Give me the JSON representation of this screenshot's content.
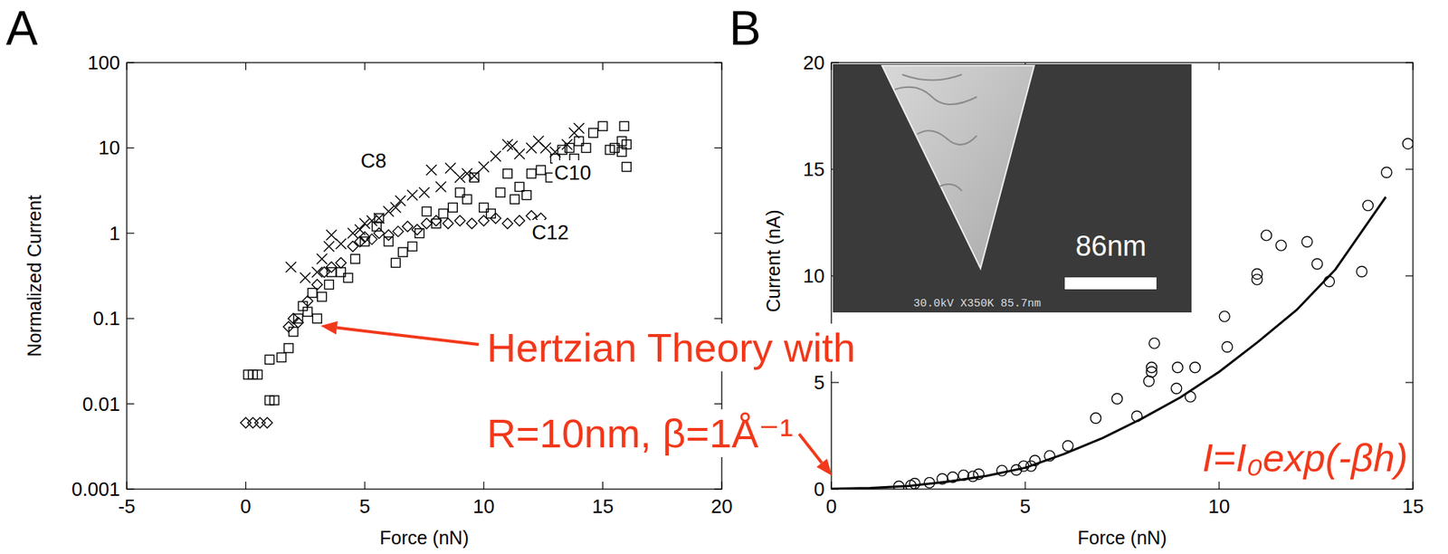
{
  "chart_data": [
    {
      "type": "scatter",
      "title": "A",
      "x_label": "Force (nN)",
      "y_label": "Normalized Current",
      "log": "y",
      "xlim": [
        -5,
        20
      ],
      "xticks": [
        -5,
        0,
        5,
        10,
        15,
        20
      ],
      "ylim": [
        0.001,
        100
      ],
      "yticks": [
        0.001,
        0.01,
        0.1,
        1,
        10,
        100
      ],
      "series": [
        {
          "name": "C8",
          "marker": "x",
          "x": [
            1.9,
            2.5,
            3.0,
            3.2,
            3.5,
            3.6,
            4.0,
            4.5,
            4.8,
            5.0,
            5.3,
            5.6,
            6.0,
            6.3,
            6.5,
            7.0,
            7.5,
            7.8,
            8.2,
            8.6,
            9.0,
            9.3,
            9.6,
            10.0,
            10.5,
            11.0,
            11.2,
            11.5,
            12.0,
            12.3,
            12.6,
            13.0,
            13.5,
            13.8,
            14.0
          ],
          "values": [
            0.4,
            0.3,
            0.35,
            0.5,
            0.7,
            0.95,
            0.75,
            1.0,
            1.1,
            1.3,
            1.4,
            1.5,
            1.8,
            2.0,
            2.4,
            2.8,
            3.0,
            5.5,
            3.5,
            5.8,
            4.5,
            5.0,
            4.7,
            6.0,
            8.0,
            11.0,
            10.5,
            8.5,
            10.0,
            12.0,
            10.0,
            9.0,
            11.0,
            15.0,
            17.0
          ]
        },
        {
          "name": "C10",
          "marker": "square",
          "x": [
            0.1,
            0.3,
            0.5,
            1.0,
            1.2,
            1.0,
            1.5,
            1.8,
            2.0,
            2.2,
            2.4,
            2.6,
            2.8,
            3.0,
            3.2,
            3.5,
            3.6,
            4.0,
            4.3,
            4.6,
            5.0,
            5.5,
            5.6,
            6.0,
            6.3,
            6.6,
            7.0,
            7.3,
            7.6,
            8.0,
            8.3,
            8.7,
            9.0,
            9.3,
            9.6,
            10.0,
            10.3,
            10.7,
            11.0,
            11.3,
            11.5,
            11.8,
            12.0,
            12.4,
            12.8,
            13.0,
            13.3,
            13.6,
            13.8,
            14.0,
            14.3,
            14.6,
            15.0,
            15.3,
            15.5,
            15.8,
            15.9,
            16.0,
            15.8,
            16.0
          ],
          "values": [
            0.022,
            0.022,
            0.022,
            0.011,
            0.011,
            0.033,
            0.035,
            0.045,
            0.07,
            0.1,
            0.14,
            0.12,
            0.2,
            0.1,
            0.18,
            0.25,
            0.35,
            0.35,
            0.3,
            0.5,
            0.8,
            1.2,
            1.5,
            0.8,
            0.45,
            0.6,
            0.7,
            1.0,
            1.8,
            1.3,
            1.7,
            2.0,
            3.0,
            2.5,
            4.5,
            2.0,
            1.7,
            3.0,
            5.0,
            2.5,
            3.5,
            2.8,
            5.0,
            5.5,
            4.5,
            7.5,
            9.5,
            10.0,
            7.5,
            12.0,
            10.0,
            15.0,
            18.0,
            9.5,
            10.0,
            12.0,
            18.0,
            6.0,
            9.0,
            11.0
          ]
        },
        {
          "name": "C12",
          "marker": "diamond",
          "x": [
            0.0,
            0.3,
            0.6,
            0.9,
            1.8,
            2.0,
            2.2,
            2.6,
            3.0,
            3.3,
            3.6,
            4.0,
            4.5,
            4.8,
            5.0,
            5.3,
            5.6,
            6.0,
            6.4,
            6.8,
            7.2,
            7.6,
            8.0,
            8.5,
            9.0,
            9.5,
            10.0,
            10.5,
            11.0,
            11.5,
            12.0,
            12.4
          ],
          "values": [
            0.006,
            0.006,
            0.006,
            0.006,
            0.08,
            0.1,
            0.09,
            0.16,
            0.25,
            0.35,
            0.4,
            0.45,
            0.7,
            0.8,
            0.9,
            0.85,
            1.0,
            0.95,
            1.05,
            1.2,
            1.1,
            1.3,
            1.4,
            1.3,
            1.4,
            1.3,
            1.4,
            1.5,
            1.3,
            1.4,
            1.6,
            1.5
          ]
        }
      ],
      "annotations": [
        "Hertzian Theory with",
        "R=10nm, β=1Å⁻¹"
      ]
    },
    {
      "type": "scatter",
      "title": "B",
      "x_label": "Force (nN)",
      "y_label": "Current (nA)",
      "xlim": [
        0,
        15
      ],
      "xticks": [
        0,
        5,
        10,
        15
      ],
      "ylim": [
        0,
        20
      ],
      "yticks": [
        0,
        5,
        10,
        15,
        20
      ],
      "series": [
        {
          "marker": "circle",
          "x": [
            1.74,
            2.05,
            2.15,
            2.53,
            2.86,
            3.13,
            3.41,
            3.65,
            3.8,
            4.4,
            4.77,
            4.96,
            5.15,
            5.25,
            5.63,
            6.1,
            6.82,
            7.37,
            7.88,
            8.19,
            8.26,
            8.26,
            8.33,
            8.9,
            8.93,
            9.38,
            9.26,
            10.14,
            10.21,
            10.98,
            10.98,
            11.22,
            11.6,
            12.27,
            12.53,
            12.84,
            13.68,
            13.84,
            14.32,
            14.87
          ],
          "values": [
            0.13,
            0.17,
            0.26,
            0.3,
            0.48,
            0.56,
            0.65,
            0.6,
            0.7,
            0.87,
            0.9,
            1.08,
            1.08,
            1.34,
            1.56,
            2.03,
            3.33,
            4.24,
            3.42,
            5.06,
            5.71,
            5.5,
            6.84,
            4.72,
            5.71,
            5.71,
            4.33,
            8.1,
            6.67,
            10.09,
            9.83,
            11.9,
            11.43,
            11.6,
            10.56,
            9.74,
            10.2,
            13.3,
            14.85,
            16.2
          ]
        },
        {
          "type": "line",
          "line_style": "solid",
          "x": [
            0,
            1,
            2,
            3,
            4,
            5,
            6,
            7,
            8,
            9,
            10,
            11,
            12,
            13,
            14.3
          ],
          "values": [
            0.02,
            0.05,
            0.15,
            0.35,
            0.62,
            1.0,
            1.65,
            2.4,
            3.3,
            4.3,
            5.5,
            6.9,
            8.4,
            10.3,
            13.7
          ]
        }
      ],
      "annotations": [
        "I=I₀exp(-βh)"
      ],
      "inset": {
        "scale_label": "86nm",
        "caption": "30.0kV X350K 85.7nm"
      }
    }
  ]
}
